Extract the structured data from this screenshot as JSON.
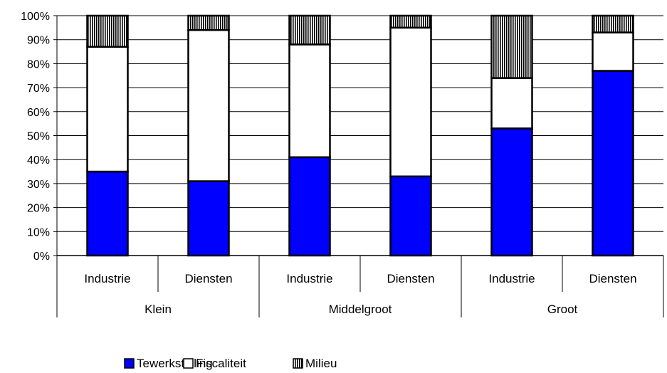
{
  "chart_data": {
    "type": "bar",
    "stacked": true,
    "percent_stacked": true,
    "title": "",
    "xlabel": "",
    "ylabel": "",
    "ylim": [
      0,
      100
    ],
    "y_ticks": [
      "0%",
      "10%",
      "20%",
      "30%",
      "40%",
      "50%",
      "60%",
      "70%",
      "80%",
      "90%",
      "100%"
    ],
    "grid": true,
    "legend_position": "bottom",
    "categories": [
      "Industrie",
      "Diensten",
      "Industrie",
      "Diensten",
      "Industrie",
      "Diensten"
    ],
    "groups": [
      {
        "label": "Klein",
        "span": 2
      },
      {
        "label": "Middelgroot",
        "span": 2
      },
      {
        "label": "Groot",
        "span": 2
      }
    ],
    "series": [
      {
        "name": "Tewerkstelling",
        "color": "#0000ff",
        "pattern": "solid",
        "values": [
          35,
          31,
          41,
          33,
          53,
          77
        ]
      },
      {
        "name": "Fiscaliteit",
        "color": "#ffffff",
        "pattern": "solid",
        "values": [
          52,
          63,
          47,
          62,
          21,
          16
        ]
      },
      {
        "name": "Milieu",
        "color": "#808080",
        "pattern": "vertical-stripes",
        "values": [
          13,
          6,
          12,
          5,
          26,
          7
        ]
      }
    ]
  }
}
